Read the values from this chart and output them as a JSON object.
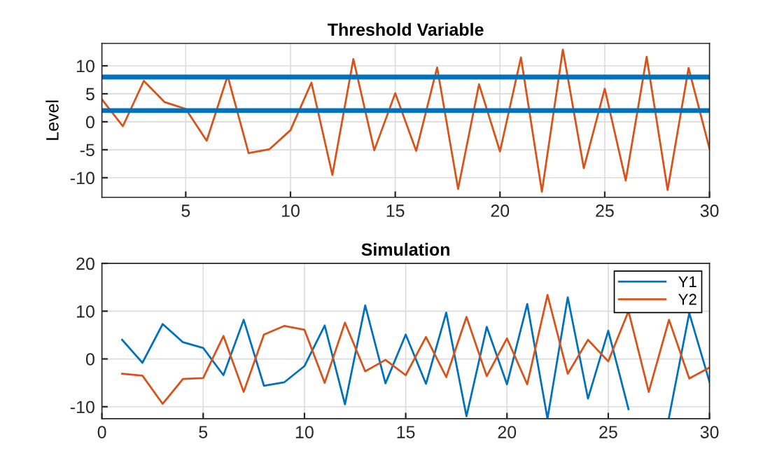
{
  "chart_data": [
    {
      "type": "line",
      "title": "Threshold Variable",
      "ylabel": "Level",
      "x": [
        1,
        2,
        3,
        4,
        5,
        6,
        7,
        8,
        9,
        10,
        11,
        12,
        13,
        14,
        15,
        16,
        17,
        18,
        19,
        20,
        21,
        22,
        23,
        24,
        25,
        26,
        27,
        28,
        29,
        30
      ],
      "series": [
        {
          "color": "#d95319",
          "values": [
            4,
            -0.8,
            7.3,
            3.5,
            2.3,
            -3.4,
            8.2,
            -5.6,
            -4.9,
            -1.5,
            7,
            -9.5,
            11.2,
            -5.1,
            5.1,
            -5.2,
            9.7,
            -12,
            6.7,
            -5.3,
            11.5,
            -12.5,
            12.9,
            -8.3,
            5.9,
            -10.5,
            11.6,
            -12.2,
            9.6,
            -4.8
          ]
        }
      ],
      "ref_lines": [
        {
          "axis": "y",
          "value": 8,
          "color": "#0072bd"
        },
        {
          "axis": "y",
          "value": 2,
          "color": "#0072bd"
        }
      ],
      "xlim": [
        1,
        30
      ],
      "xticks": [
        5,
        10,
        15,
        20,
        25,
        30
      ],
      "ylim": [
        -13.5,
        14
      ],
      "yticks": [
        -10,
        -5,
        0,
        5,
        10
      ],
      "grid": true,
      "legend": false
    },
    {
      "type": "line",
      "title": "Simulation",
      "x": [
        1,
        2,
        3,
        4,
        5,
        6,
        7,
        8,
        9,
        10,
        11,
        12,
        13,
        14,
        15,
        16,
        17,
        18,
        19,
        20,
        21,
        22,
        23,
        24,
        25,
        26,
        27,
        28,
        29,
        30
      ],
      "series": [
        {
          "name": "Y1",
          "color": "#0072bd",
          "values": [
            4,
            -0.8,
            7.3,
            3.5,
            2.3,
            -3.4,
            8.2,
            -5.6,
            -4.9,
            -1.5,
            7,
            -9.5,
            11.2,
            -5.1,
            5.1,
            -5.2,
            9.7,
            -12,
            6.7,
            -5.3,
            11.5,
            -12.5,
            12.9,
            -8.3,
            5.9,
            -10.5,
            null,
            -12.2,
            9.6,
            -4.8
          ]
        },
        {
          "name": "Y2",
          "color": "#d95319",
          "values": [
            -3.1,
            -3.5,
            -9.4,
            -4.2,
            -4,
            4.8,
            -6.9,
            5.1,
            6.9,
            6.1,
            -5,
            7.6,
            -2.6,
            -0.2,
            -3.4,
            4.6,
            -3.8,
            8.8,
            -3.6,
            4.3,
            -5.3,
            13.4,
            -3.1,
            4,
            -0.5,
            10,
            -6.9,
            8.2,
            -4.1,
            -1.8
          ]
        }
      ],
      "xlim": [
        0,
        30
      ],
      "xticks": [
        0,
        5,
        10,
        15,
        20,
        25,
        30
      ],
      "ylim": [
        -12.5,
        20
      ],
      "yticks": [
        -10,
        0,
        10,
        20
      ],
      "grid": true,
      "legend": "top right"
    }
  ]
}
